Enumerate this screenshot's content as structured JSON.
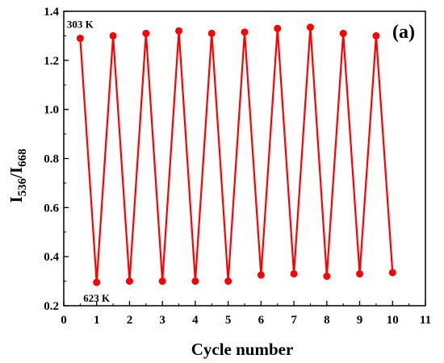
{
  "chart_data": {
    "type": "line",
    "panel_label": "(a)",
    "xlabel": "Cycle number",
    "ylabel_main": "I",
    "ylabel_sub1": "536",
    "ylabel_slash": "/I",
    "ylabel_sub2": "668",
    "xlim": [
      0,
      11
    ],
    "ylim": [
      0.2,
      1.4
    ],
    "xticks": [
      0,
      1,
      2,
      3,
      4,
      5,
      6,
      7,
      8,
      9,
      10,
      11
    ],
    "xtick_labels": [
      "0",
      "1",
      "2",
      "3",
      "4",
      "5",
      "6",
      "7",
      "8",
      "9",
      "10",
      "11"
    ],
    "yticks": [
      0.2,
      0.4,
      0.6,
      0.8,
      1.0,
      1.2,
      1.4
    ],
    "ytick_labels": [
      "0.2",
      "0.4",
      "0.6",
      "0.8",
      "1.0",
      "1.2",
      "1.4"
    ],
    "grid": false,
    "series": [
      {
        "color": "#ff0000",
        "marker": "circle",
        "x": [
          0.5,
          1,
          1.5,
          2,
          2.5,
          3,
          3.5,
          4,
          4.5,
          5,
          5.5,
          6,
          6.5,
          7,
          7.5,
          8,
          8.5,
          9,
          9.5,
          10
        ],
        "y": [
          1.29,
          0.295,
          1.3,
          0.3,
          1.31,
          0.3,
          1.32,
          0.3,
          1.31,
          0.3,
          1.315,
          0.325,
          1.33,
          0.33,
          1.335,
          0.32,
          1.31,
          0.33,
          1.3,
          0.335
        ]
      }
    ],
    "annotations": [
      {
        "text": "303 K",
        "x": 0.5,
        "y": 1.29,
        "place": "above"
      },
      {
        "text": "623 K",
        "x": 1,
        "y": 0.295,
        "place": "below"
      }
    ]
  }
}
